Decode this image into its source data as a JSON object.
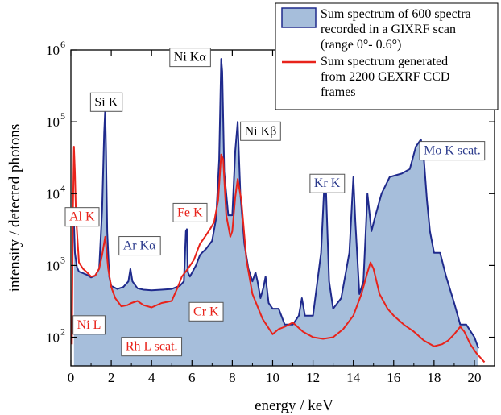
{
  "chart_data": {
    "type": "area",
    "xlabel": "energy / keV",
    "ylabel": "intensity / detected photons",
    "scale": {
      "y": "log"
    },
    "xlim": [
      0,
      21
    ],
    "ylim": [
      40,
      1000000
    ],
    "xticks": [
      0,
      2,
      4,
      6,
      8,
      10,
      12,
      14,
      16,
      18,
      20
    ],
    "yticks": [
      {
        "value": 100,
        "label": "10",
        "exp": "2"
      },
      {
        "value": 1000,
        "label": "10",
        "exp": "3"
      },
      {
        "value": 10000,
        "label": "10",
        "exp": "4"
      },
      {
        "value": 100000,
        "label": "10",
        "exp": "5"
      },
      {
        "value": 1000000,
        "label": "10",
        "exp": "6"
      }
    ],
    "colors": {
      "gixrf_fill": "#a6bedb",
      "gixrf_line": "#1f2a8c",
      "gexrf_line": "#e8231b",
      "blue_label": "#2b3a8c",
      "red_label": "#e8231b"
    },
    "legend": {
      "position": "top-right",
      "entries": [
        {
          "series": "gixrf",
          "lines": [
            "Sum spectrum of 600 spectra",
            "recorded in a GIXRF scan",
            "(range 0°- 0.6°)"
          ]
        },
        {
          "series": "gexrf",
          "lines": [
            "Sum spectrum generated",
            "from 2200 GEXRF CCD",
            "frames"
          ]
        }
      ]
    },
    "series": [
      {
        "id": "gixrf",
        "style": "filled-area",
        "x": [
          0.15,
          0.2,
          0.3,
          0.4,
          0.6,
          0.8,
          1.0,
          1.2,
          1.4,
          1.55,
          1.65,
          1.7,
          1.74,
          1.8,
          1.9,
          2.0,
          2.3,
          2.6,
          2.85,
          2.95,
          3.05,
          3.3,
          3.6,
          4.0,
          4.5,
          5.0,
          5.4,
          5.6,
          5.7,
          5.75,
          5.8,
          5.9,
          6.2,
          6.4,
          6.5,
          6.7,
          7.0,
          7.2,
          7.35,
          7.45,
          7.5,
          7.6,
          7.8,
          8.0,
          8.15,
          8.27,
          8.4,
          8.6,
          8.8,
          9.0,
          9.15,
          9.25,
          9.4,
          9.55,
          9.65,
          9.8,
          10.0,
          10.3,
          10.6,
          11.0,
          11.3,
          11.45,
          11.6,
          12.0,
          12.4,
          12.55,
          12.65,
          12.8,
          13.0,
          13.4,
          13.8,
          14.0,
          14.1,
          14.3,
          14.5,
          14.7,
          14.9,
          15.1,
          15.4,
          15.8,
          16.1,
          16.4,
          16.8,
          17.1,
          17.35,
          17.5,
          17.65,
          17.8,
          18.0,
          18.3,
          18.6,
          19.0,
          19.3,
          19.6,
          20.0,
          20.2
        ],
        "y": [
          4000,
          1500,
          950,
          820,
          780,
          740,
          680,
          720,
          900,
          6000,
          70000,
          150000,
          40000,
          3000,
          700,
          520,
          470,
          500,
          600,
          900,
          600,
          480,
          460,
          450,
          460,
          470,
          520,
          600,
          3000,
          3200,
          800,
          700,
          1000,
          1400,
          1500,
          1700,
          2200,
          4500,
          30000,
          750000,
          500000,
          20000,
          5000,
          5000,
          40000,
          100000,
          10000,
          2000,
          900,
          600,
          800,
          600,
          350,
          500,
          700,
          300,
          250,
          250,
          150,
          150,
          200,
          350,
          200,
          200,
          1500,
          11000,
          10000,
          600,
          250,
          350,
          1500,
          17000,
          4000,
          400,
          600,
          10000,
          3000,
          5000,
          10000,
          17000,
          18000,
          19000,
          22000,
          45000,
          57000,
          30000,
          8000,
          3000,
          1500,
          1500,
          700,
          300,
          150,
          150,
          100,
          70
        ]
      },
      {
        "id": "gexrf",
        "style": "line",
        "x": [
          0.05,
          0.1,
          0.15,
          0.2,
          0.25,
          0.4,
          0.6,
          0.8,
          1.0,
          1.2,
          1.4,
          1.55,
          1.7,
          1.75,
          1.85,
          2.0,
          2.2,
          2.5,
          2.8,
          3.0,
          3.3,
          3.6,
          4.0,
          4.5,
          5.0,
          5.3,
          5.5,
          5.8,
          6.1,
          6.3,
          6.4,
          6.6,
          6.9,
          7.1,
          7.3,
          7.45,
          7.55,
          7.7,
          7.9,
          8.0,
          8.15,
          8.27,
          8.45,
          8.7,
          9.0,
          9.5,
          10.0,
          10.3,
          10.6,
          11.0,
          11.5,
          12.0,
          12.5,
          13.0,
          13.5,
          14.0,
          14.4,
          14.7,
          14.85,
          15.0,
          15.3,
          15.7,
          16.0,
          16.5,
          17.0,
          17.5,
          18.0,
          18.4,
          18.7,
          19.0,
          19.3,
          19.5,
          19.8,
          20.1,
          20.5
        ],
        "y": [
          80,
          5000,
          45000,
          20000,
          5000,
          1100,
          900,
          800,
          700,
          720,
          900,
          1400,
          2500,
          1800,
          900,
          500,
          350,
          270,
          280,
          300,
          320,
          280,
          260,
          300,
          320,
          500,
          700,
          900,
          1200,
          1700,
          2000,
          2400,
          3200,
          4000,
          8000,
          35000,
          30000,
          5000,
          2500,
          3000,
          9000,
          16000,
          8000,
          1200,
          400,
          180,
          110,
          130,
          140,
          160,
          120,
          100,
          95,
          100,
          130,
          200,
          400,
          800,
          1100,
          900,
          400,
          250,
          200,
          150,
          120,
          90,
          75,
          80,
          90,
          110,
          140,
          120,
          80,
          60,
          45
        ]
      }
    ],
    "annotations": [
      {
        "text": "Si K",
        "x": 1.75,
        "y": 190000,
        "color": "black",
        "box": true
      },
      {
        "text": "Ni Kα",
        "x": 5.9,
        "y": 800000,
        "color": "black",
        "box": true
      },
      {
        "text": "Ni Kβ",
        "x": 9.4,
        "y": 75000,
        "color": "black",
        "box": true
      },
      {
        "text": "Kr K",
        "x": 12.7,
        "y": 14000,
        "color": "blue",
        "box": true
      },
      {
        "text": "Mo K scat.",
        "x": 18.9,
        "y": 40000,
        "color": "blue",
        "box": true
      },
      {
        "text": "Ar Kα",
        "x": 3.4,
        "y": 1900,
        "color": "blue",
        "box": true
      },
      {
        "text": "Al K",
        "x": 0.55,
        "y": 4800,
        "color": "red",
        "box": true
      },
      {
        "text": "Fe K",
        "x": 5.9,
        "y": 5500,
        "color": "red",
        "box": true
      },
      {
        "text": "Cr K",
        "x": 6.7,
        "y": 230,
        "color": "red",
        "box": true
      },
      {
        "text": "Ni L",
        "x": 0.9,
        "y": 150,
        "color": "red",
        "box": true
      },
      {
        "text": "Rh L scat.",
        "x": 4.0,
        "y": 75,
        "color": "red",
        "box": true
      }
    ]
  }
}
